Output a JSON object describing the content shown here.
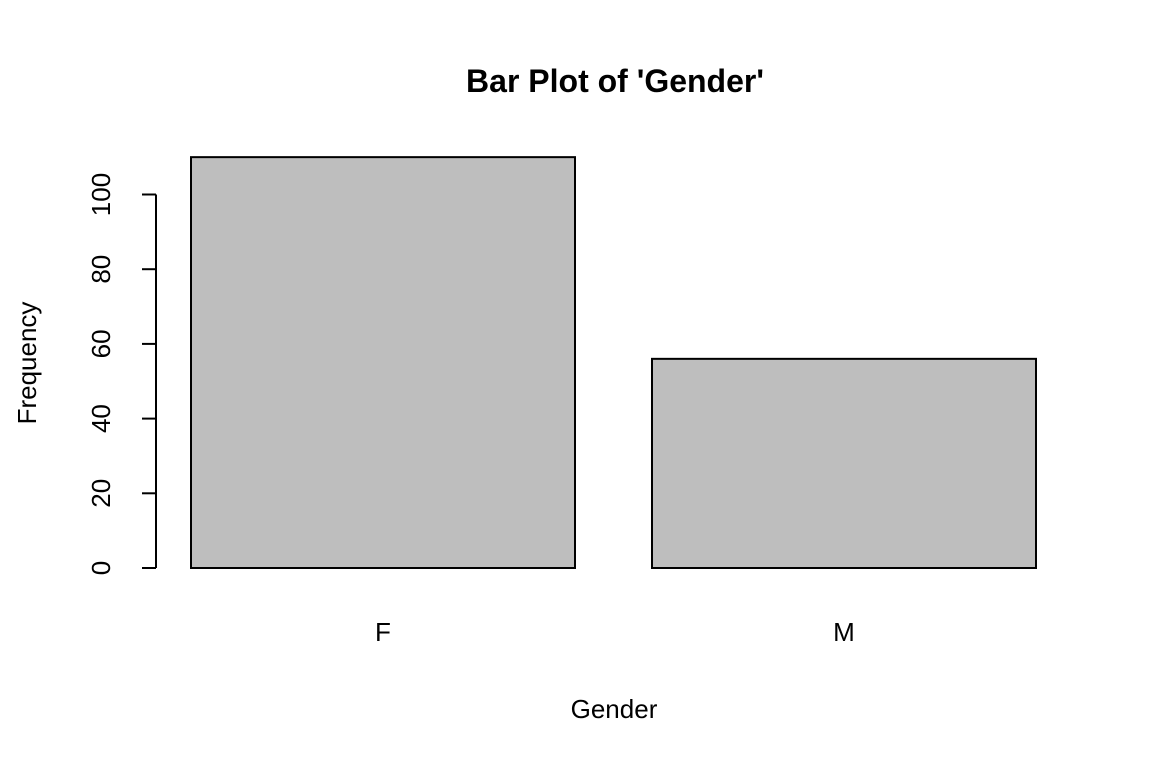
{
  "chart_data": {
    "type": "bar",
    "title": "Bar Plot of 'Gender'",
    "xlabel": "Gender",
    "ylabel": "Frequency",
    "categories": [
      "F",
      "M"
    ],
    "values": [
      110,
      56
    ],
    "ylim": [
      0,
      110
    ],
    "yticks": [
      0,
      20,
      40,
      60,
      80,
      100
    ],
    "ytick_labels": [
      "0",
      "20",
      "40",
      "60",
      "80",
      "100"
    ],
    "grid": false,
    "bar_color": "#bebebe",
    "edge_color": "#000000"
  }
}
